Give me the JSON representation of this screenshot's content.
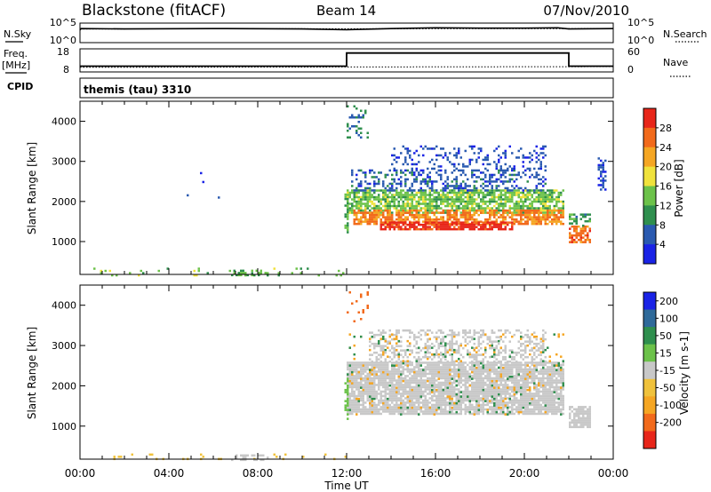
{
  "header": {
    "station": "Blackstone (fitACF)",
    "beam": "Beam 14",
    "date": "07/Nov/2010"
  },
  "labels": {
    "nsky": "N.Sky",
    "nsearch": "N.Search",
    "freq_top": "Freq.",
    "freq_bot": "[MHz]",
    "nave": "Nave",
    "cpid": "CPID",
    "cpid_value": "themis (tau) 3310",
    "slant_range": "Slant Range [km]",
    "time_axis": "Time UT"
  },
  "colors": {
    "power_scale": [
      "#1a23e6",
      "#2a5ab0",
      "#2f8f4e",
      "#6cc24a",
      "#f0e23c",
      "#f5a623",
      "#f26a1b",
      "#e8261a"
    ],
    "velocity_scale": [
      "#1a23e6",
      "#2f6a9a",
      "#2f8f4e",
      "#6cc24a",
      "#c8c8c8",
      "#f0c23c",
      "#f5a623",
      "#f26a1b",
      "#e8261a"
    ],
    "ground_scatter": "#c8c8c8"
  },
  "chart_data": [
    {
      "type": "line",
      "name": "noise",
      "left_ticks": [
        "10^5",
        "10^0"
      ],
      "right_ticks": [
        "10^5",
        "10^0"
      ],
      "series": [
        {
          "name": "N.Sky",
          "style": "solid",
          "x": [
            0,
            0.05,
            2,
            6,
            10,
            12,
            14,
            16,
            18,
            20,
            21.5,
            22,
            24
          ],
          "y": [
            0.65,
            0.72,
            0.7,
            0.72,
            0.7,
            0.66,
            0.72,
            0.76,
            0.74,
            0.74,
            0.76,
            0.7,
            0.72
          ]
        },
        {
          "name": "N.Search",
          "style": "dotted",
          "x": [
            0,
            24
          ],
          "y": [
            0.7,
            0.72
          ]
        }
      ]
    },
    {
      "type": "line",
      "name": "frequency_nave",
      "left_ticks": [
        "18",
        "8"
      ],
      "right_ticks": [
        "60",
        "0"
      ],
      "series": [
        {
          "name": "Freq.",
          "style": "solid",
          "x": [
            0,
            12,
            12,
            22,
            22,
            24
          ],
          "y": [
            10.5,
            10.5,
            16.2,
            16.2,
            10.5,
            10.5
          ]
        },
        {
          "name": "Nave",
          "style": "dotted",
          "x": [
            0,
            24
          ],
          "y": [
            10.0,
            10.3
          ]
        }
      ]
    },
    {
      "type": "heatmap",
      "name": "power",
      "x_range_hours": [
        0,
        24
      ],
      "ylim_km": [
        180,
        4500
      ],
      "xticks": [
        "00:00",
        "04:00",
        "08:00",
        "12:00",
        "16:00",
        "20:00",
        "00:00"
      ],
      "yticks": [
        1000,
        2000,
        3000,
        4000
      ],
      "colorbar": {
        "label": "Power [dB]",
        "ticks": [
          4,
          8,
          12,
          16,
          20,
          24,
          28
        ],
        "range": [
          0,
          32
        ]
      },
      "regions": [
        {
          "t0": 12.0,
          "t1": 21.8,
          "r0": 1700,
          "r1": 2300,
          "value": 14,
          "density": 0.75
        },
        {
          "t0": 12.3,
          "t1": 21.8,
          "r0": 1450,
          "r1": 1800,
          "value": 24,
          "density": 0.7
        },
        {
          "t0": 13.5,
          "t1": 19.5,
          "r0": 1300,
          "r1": 1500,
          "value": 30,
          "density": 0.8
        },
        {
          "t0": 12.2,
          "t1": 21.0,
          "r0": 2300,
          "r1": 2800,
          "value": 6,
          "density": 0.35
        },
        {
          "t0": 14.0,
          "t1": 21.0,
          "r0": 2800,
          "r1": 3400,
          "value": 5,
          "density": 0.2
        },
        {
          "t0": 22.0,
          "t1": 23.0,
          "r0": 1000,
          "r1": 1400,
          "value": 26,
          "density": 0.75
        },
        {
          "t0": 22.0,
          "t1": 23.0,
          "r0": 1400,
          "r1": 1700,
          "value": 10,
          "density": 0.5
        },
        {
          "t0": 11.9,
          "t1": 12.1,
          "r0": 1200,
          "r1": 2200,
          "value": 12,
          "density": 0.6
        },
        {
          "t0": 12.0,
          "t1": 13.0,
          "r0": 3600,
          "r1": 4400,
          "value": 8,
          "density": 0.15
        },
        {
          "t0": 23.3,
          "t1": 23.7,
          "r0": 2300,
          "r1": 3100,
          "value": 5,
          "density": 0.4
        },
        {
          "t0": 0.5,
          "t1": 12.0,
          "r0": 180,
          "r1": 350,
          "value": 14,
          "density": 0.08
        },
        {
          "t0": 6.8,
          "t1": 8.5,
          "r0": 180,
          "r1": 300,
          "value": 13,
          "density": 0.5
        },
        {
          "t0": 4.8,
          "t1": 6.5,
          "r0": 1900,
          "r1": 2900,
          "value": 5,
          "density": 0.02
        }
      ]
    },
    {
      "type": "heatmap",
      "name": "velocity",
      "x_range_hours": [
        0,
        24
      ],
      "ylim_km": [
        180,
        4500
      ],
      "xticks": [
        "00:00",
        "04:00",
        "08:00",
        "12:00",
        "16:00",
        "20:00",
        "00:00"
      ],
      "yticks": [
        1000,
        2000,
        3000,
        4000
      ],
      "colorbar": {
        "label": "Velocity [m s-1]",
        "ticks": [
          "200",
          "100",
          "50",
          "15",
          "-15",
          "-50",
          "-100",
          "-200"
        ]
      },
      "regions": [
        {
          "t0": 12.0,
          "t1": 21.8,
          "r0": 1300,
          "r1": 2600,
          "value": 0,
          "density": 0.85
        },
        {
          "t0": 13.0,
          "t1": 21.0,
          "r0": 2600,
          "r1": 3400,
          "value": 0,
          "density": 0.4
        },
        {
          "t0": 22.0,
          "t1": 23.0,
          "r0": 1000,
          "r1": 1500,
          "value": 0,
          "density": 0.8
        },
        {
          "t0": 12.0,
          "t1": 21.8,
          "r0": 1300,
          "r1": 3300,
          "value": -60,
          "density": 0.05
        },
        {
          "t0": 12.0,
          "t1": 21.8,
          "r0": 1300,
          "r1": 3300,
          "value": 80,
          "density": 0.03
        },
        {
          "t0": 11.9,
          "t1": 12.1,
          "r0": 1200,
          "r1": 2200,
          "value": 30,
          "density": 0.6
        },
        {
          "t0": 12.0,
          "t1": 13.0,
          "r0": 3600,
          "r1": 4400,
          "value": -150,
          "density": 0.15
        },
        {
          "t0": 0.5,
          "t1": 12.0,
          "r0": 180,
          "r1": 320,
          "value": -40,
          "density": 0.08
        },
        {
          "t0": 6.8,
          "t1": 8.5,
          "r0": 180,
          "r1": 300,
          "value": 0,
          "density": 0.5
        }
      ]
    }
  ]
}
